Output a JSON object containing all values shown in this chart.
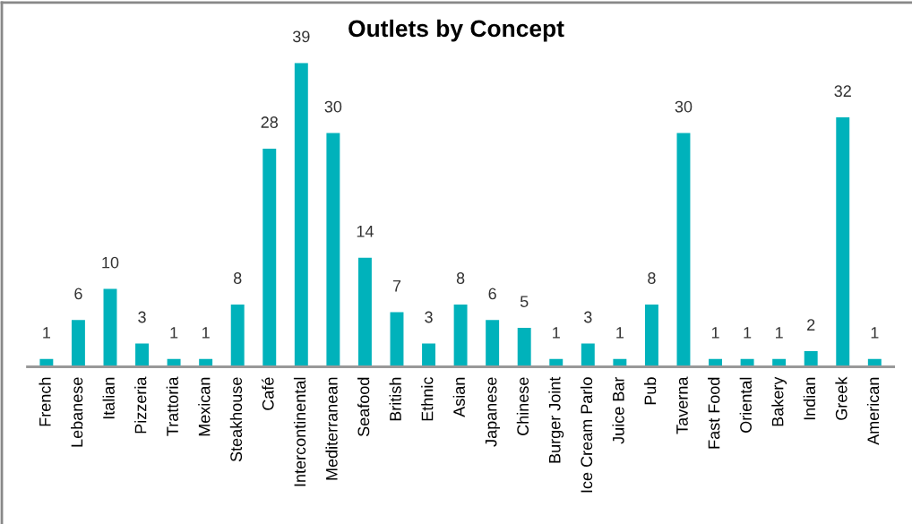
{
  "chart_data": {
    "type": "bar",
    "title": "Outlets by Concept",
    "categories": [
      "French",
      "Lebanese",
      "Italian",
      "Pizzeria",
      "Trattoria",
      "Mexican",
      "Steakhouse",
      "Café",
      "Intercontinental",
      "Mediterranean",
      "Seafood",
      "British",
      "Ethnic",
      "Asian",
      "Japanese",
      "Chinese",
      "Burger Joint",
      "Ice Cream Parlo",
      "Juice Bar",
      "Pub",
      "Taverna",
      "Fast Food",
      "Oriental",
      "Bakery",
      "Indian",
      "Greek",
      "American"
    ],
    "values": [
      1,
      6,
      10,
      3,
      1,
      1,
      8,
      28,
      39,
      30,
      14,
      7,
      3,
      8,
      6,
      5,
      1,
      3,
      1,
      8,
      30,
      1,
      1,
      1,
      2,
      32,
      1
    ],
    "color": "#00b2bb",
    "data_labels": true,
    "grid": false,
    "legend": false
  }
}
